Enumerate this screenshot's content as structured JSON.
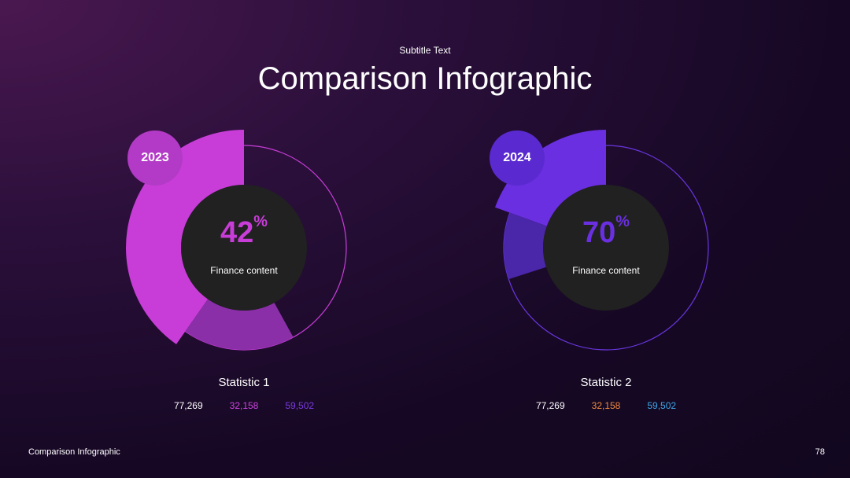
{
  "header": {
    "subtitle": "Subtitle Text",
    "title": "Comparison Infographic"
  },
  "chart_data": [
    {
      "type": "pie",
      "year": "2023",
      "value": 42,
      "percent_symbol": "%",
      "label": "Finance content",
      "stat_title": "Statistic 1",
      "stats": [
        "77,269",
        "32,158",
        "59,502"
      ],
      "stat_colors": [
        "#ffffff",
        "#cc44dd",
        "#7a3ae0"
      ],
      "colors": {
        "primary": "#c83dd8",
        "secondary": "#8a2fa8",
        "badge": "#b33ac6",
        "accent": "#c83dd8"
      }
    },
    {
      "type": "pie",
      "year": "2024",
      "value": 70,
      "percent_symbol": "%",
      "label": "Finance content",
      "stat_title": "Statistic 2",
      "stats": [
        "77,269",
        "32,158",
        "59,502"
      ],
      "stat_colors": [
        "#ffffff",
        "#f08a3e",
        "#3ea8e8"
      ],
      "colors": {
        "primary": "#6a2fe0",
        "secondary": "#4a26a8",
        "badge": "#5a2ad0",
        "accent": "#6a36e0"
      }
    }
  ],
  "footer": {
    "left": "Comparison Infographic",
    "page": "78"
  }
}
